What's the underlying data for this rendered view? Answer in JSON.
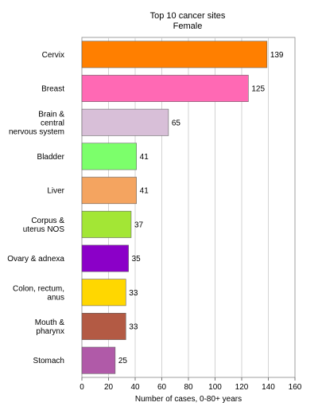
{
  "chart_data": {
    "type": "bar",
    "orientation": "horizontal",
    "title": "Top 10 cancer sites",
    "subtitle": "Female",
    "xlabel": "Number of cases, 0-80+ years",
    "ylabel": "",
    "xlim": [
      0,
      160
    ],
    "xticks": [
      0,
      20,
      40,
      60,
      80,
      100,
      120,
      140,
      160
    ],
    "grid": "vertical",
    "categories": [
      [
        "Cervix"
      ],
      [
        "Breast"
      ],
      [
        "Brain &",
        "central",
        "nervous system"
      ],
      [
        "Bladder"
      ],
      [
        "Liver"
      ],
      [
        "Corpus &",
        "uterus NOS"
      ],
      [
        "Ovary & adnexa"
      ],
      [
        "Colon, rectum,",
        "anus"
      ],
      [
        "Mouth &",
        "pharynx"
      ],
      [
        "Stomach"
      ]
    ],
    "values": [
      139,
      125,
      65,
      41,
      41,
      37,
      35,
      33,
      33,
      25
    ],
    "colors": [
      "#ff7f00",
      "#ff69b4",
      "#d8bfd8",
      "#7cff6b",
      "#f4a460",
      "#a3e635",
      "#8b00c8",
      "#ffd700",
      "#b35a44",
      "#b05aa8"
    ]
  }
}
